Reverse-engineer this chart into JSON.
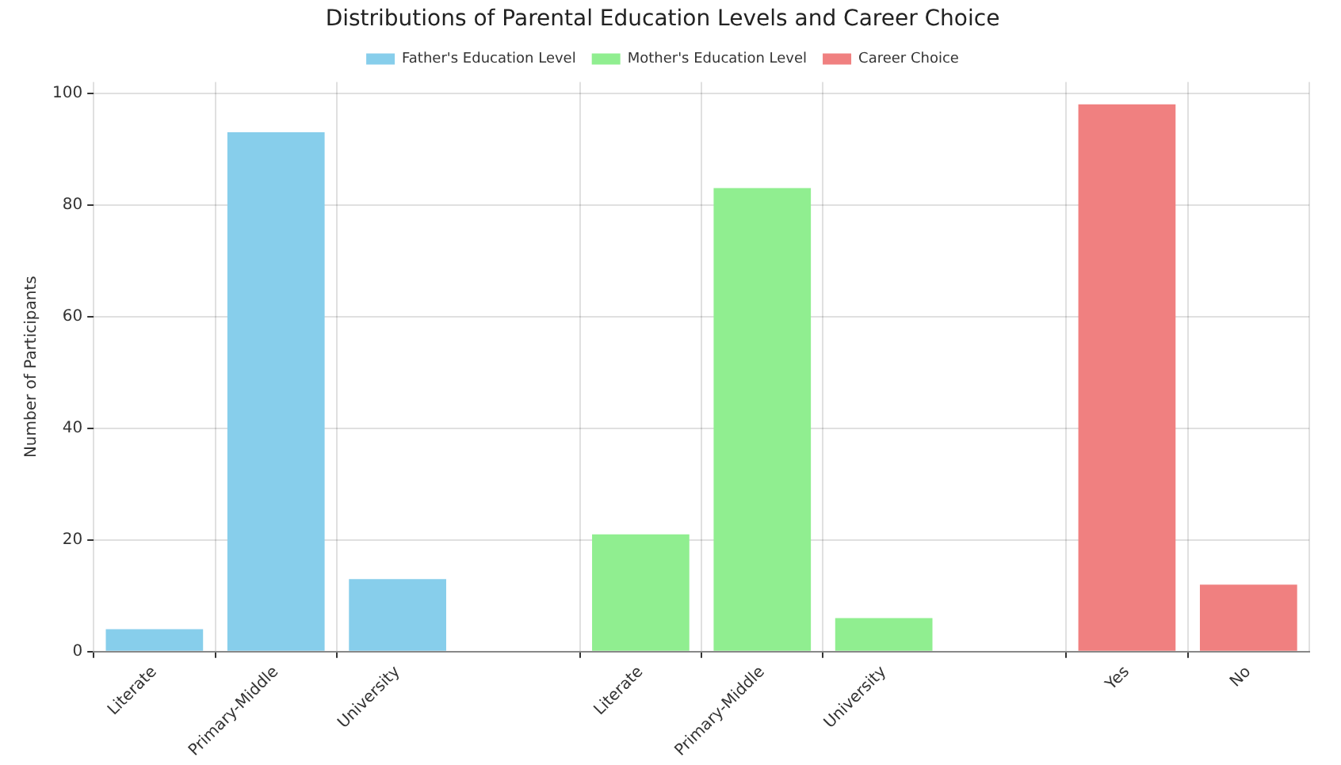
{
  "chart_data": {
    "type": "bar",
    "title": "Distributions of Parental Education Levels and Career Choice",
    "ylabel": "Number of Participants",
    "categories": [
      "Literate",
      "Primary-Middle",
      "University",
      null,
      "Literate",
      "Primary-Middle",
      "University",
      null,
      "Yes",
      "No"
    ],
    "series": [
      {
        "name": "Father's Education Level",
        "color": "#87ceeb",
        "values": [
          4,
          93,
          13,
          null,
          null,
          null,
          null,
          null,
          null,
          null
        ]
      },
      {
        "name": "Mother's Education Level",
        "color": "#90ee90",
        "values": [
          null,
          null,
          null,
          null,
          21,
          83,
          6,
          null,
          null,
          null
        ]
      },
      {
        "name": "Career Choice",
        "color": "#f08080",
        "values": [
          null,
          null,
          null,
          null,
          null,
          null,
          null,
          null,
          98,
          12
        ]
      }
    ],
    "ylim": [
      0,
      102
    ],
    "yticks": [
      0,
      20,
      40,
      60,
      80,
      100
    ],
    "grid": true,
    "legend": "top"
  }
}
